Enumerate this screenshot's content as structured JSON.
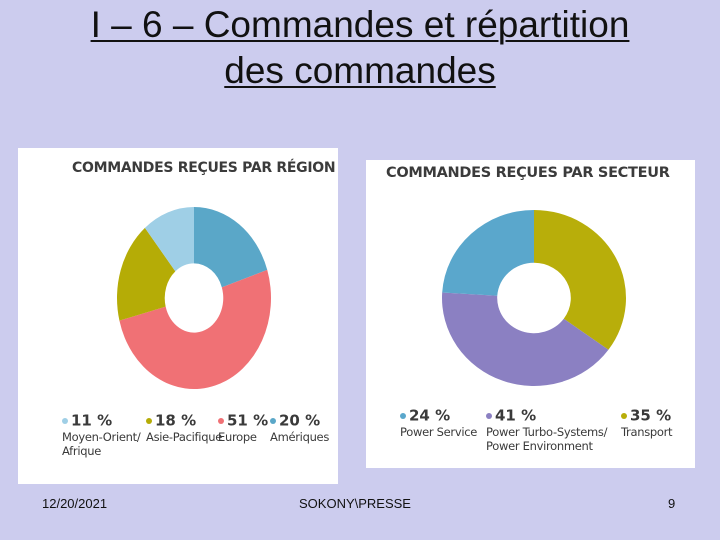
{
  "slide": {
    "title_line1": "I – 6 – Commandes et répartition",
    "title_line2": "des commandes",
    "footer_date": "12/20/2021",
    "footer_center": "SOKONY\\PRESSE",
    "footer_page": "9"
  },
  "chart_data": [
    {
      "type": "pie",
      "title": "COMMANDES REÇUES PAR RÉGION",
      "series": [
        {
          "name": "Amériques",
          "label": "Amériques",
          "pct_label": "20 %",
          "value": 20,
          "color": "#5aa7c8"
        },
        {
          "name": "Europe",
          "label": "Europe",
          "pct_label": "51 %",
          "value": 51,
          "color": "#f07175"
        },
        {
          "name": "Asie-Pacifique",
          "label": "Asie-Pacifique",
          "pct_label": "18 %",
          "value": 18,
          "color": "#b5ac06"
        },
        {
          "name": "Moyen-Orient/ Afrique",
          "label": "Moyen-Orient/\nAfrique",
          "pct_label": "11 %",
          "value": 11,
          "color": "#9fcfe6"
        }
      ]
    },
    {
      "type": "pie",
      "title": "COMMANDES REÇUES PAR SECTEUR",
      "series": [
        {
          "name": "Transport",
          "label": "Transport",
          "pct_label": "35 %",
          "value": 35,
          "color": "#b8ae0a"
        },
        {
          "name": "Power Turbo-Systems/ Power Environment",
          "label": "Power Turbo-Systems/\nPower Environment",
          "pct_label": "41 %",
          "value": 41,
          "color": "#8b80c2"
        },
        {
          "name": "Power Service",
          "label": "Power Service",
          "pct_label": "24 %",
          "value": 24,
          "color": "#5aa7cc"
        }
      ]
    }
  ]
}
